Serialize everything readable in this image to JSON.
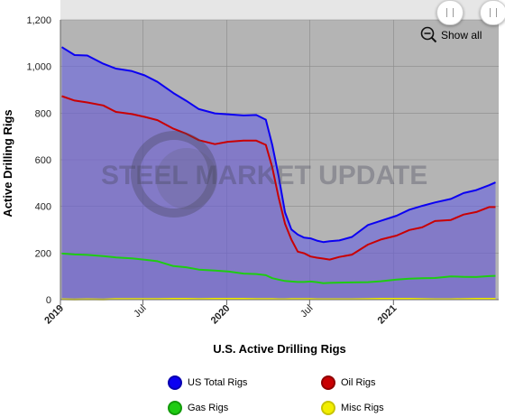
{
  "chart_data": {
    "type": "area",
    "xlabel": "U.S. Active Drilling Rigs",
    "ylabel": "Active Drilling Rigs",
    "ylim": [
      0,
      1200
    ],
    "yticks": [
      0,
      200,
      400,
      600,
      800,
      1000,
      1200
    ],
    "ytick_labels": [
      "0",
      "200",
      "400",
      "600",
      "800",
      "1,000",
      "1,200"
    ],
    "xlim": [
      "2019-01-01",
      "2021-08-20"
    ],
    "xticks": [
      {
        "date": "2019-01-01",
        "label": "2019",
        "bold": true
      },
      {
        "date": "2019-07-01",
        "label": "Jul",
        "bold": false
      },
      {
        "date": "2020-01-01",
        "label": "2020",
        "bold": true
      },
      {
        "date": "2020-07-01",
        "label": "Jul",
        "bold": false
      },
      {
        "date": "2021-01-01",
        "label": "2021",
        "bold": true
      }
    ],
    "grid": true,
    "legend_position": "bottom",
    "x": [
      "2019-01-04",
      "2019-02-01",
      "2019-03-01",
      "2019-04-05",
      "2019-05-03",
      "2019-06-07",
      "2019-07-05",
      "2019-08-02",
      "2019-09-06",
      "2019-10-04",
      "2019-11-01",
      "2019-12-06",
      "2020-01-03",
      "2020-02-07",
      "2020-03-06",
      "2020-03-27",
      "2020-04-10",
      "2020-04-24",
      "2020-05-08",
      "2020-05-22",
      "2020-06-05",
      "2020-06-19",
      "2020-07-03",
      "2020-07-17",
      "2020-07-31",
      "2020-08-14",
      "2020-09-04",
      "2020-10-02",
      "2020-11-06",
      "2020-12-04",
      "2021-01-08",
      "2021-02-05",
      "2021-03-05",
      "2021-04-02",
      "2021-05-07",
      "2021-06-04",
      "2021-07-02",
      "2021-07-30",
      "2021-08-13"
    ],
    "series": [
      {
        "name": "US Total Rigs",
        "color": "#0b00f2",
        "values": [
          1083,
          1049,
          1047,
          1012,
          991,
          980,
          962,
          934,
          886,
          853,
          817,
          799,
          795,
          790,
          792,
          772,
          664,
          529,
          374,
          301,
          279,
          266,
          263,
          253,
          247,
          251,
          254,
          269,
          320,
          338,
          360,
          386,
          402,
          417,
          432,
          457,
          470,
          491,
          503
        ]
      },
      {
        "name": "Oil Rigs",
        "color": "#c90003",
        "values": [
          873,
          854,
          846,
          833,
          805,
          796,
          784,
          770,
          733,
          712,
          684,
          667,
          677,
          682,
          682,
          664,
          568,
          438,
          325,
          258,
          206,
          199,
          185,
          180,
          176,
          172,
          183,
          193,
          236,
          258,
          275,
          299,
          310,
          337,
          342,
          365,
          376,
          397,
          397
        ]
      },
      {
        "name": "Gas Rigs",
        "color": "#1ecc12",
        "values": [
          198,
          194,
          192,
          187,
          181,
          177,
          171,
          165,
          144,
          139,
          129,
          125,
          121,
          112,
          110,
          105,
          92,
          86,
          80,
          78,
          76,
          76,
          78,
          75,
          71,
          72,
          73,
          74,
          75,
          79,
          86,
          90,
          92,
          93,
          100,
          98,
          97,
          101,
          102
        ]
      },
      {
        "name": "Misc Rigs",
        "color": "#f2ee00",
        "values": [
          2,
          1,
          2,
          1,
          3,
          3,
          3,
          3,
          4,
          4,
          3,
          4,
          4,
          4,
          3,
          3,
          3,
          2,
          2,
          3,
          3,
          3,
          3,
          2,
          2,
          2,
          2,
          2,
          3,
          4,
          4,
          4,
          3,
          2,
          2,
          3,
          4,
          4,
          4
        ]
      }
    ],
    "watermark": "STEEL MARKET UPDATE"
  },
  "controls": {
    "show_all_label": "Show all"
  }
}
